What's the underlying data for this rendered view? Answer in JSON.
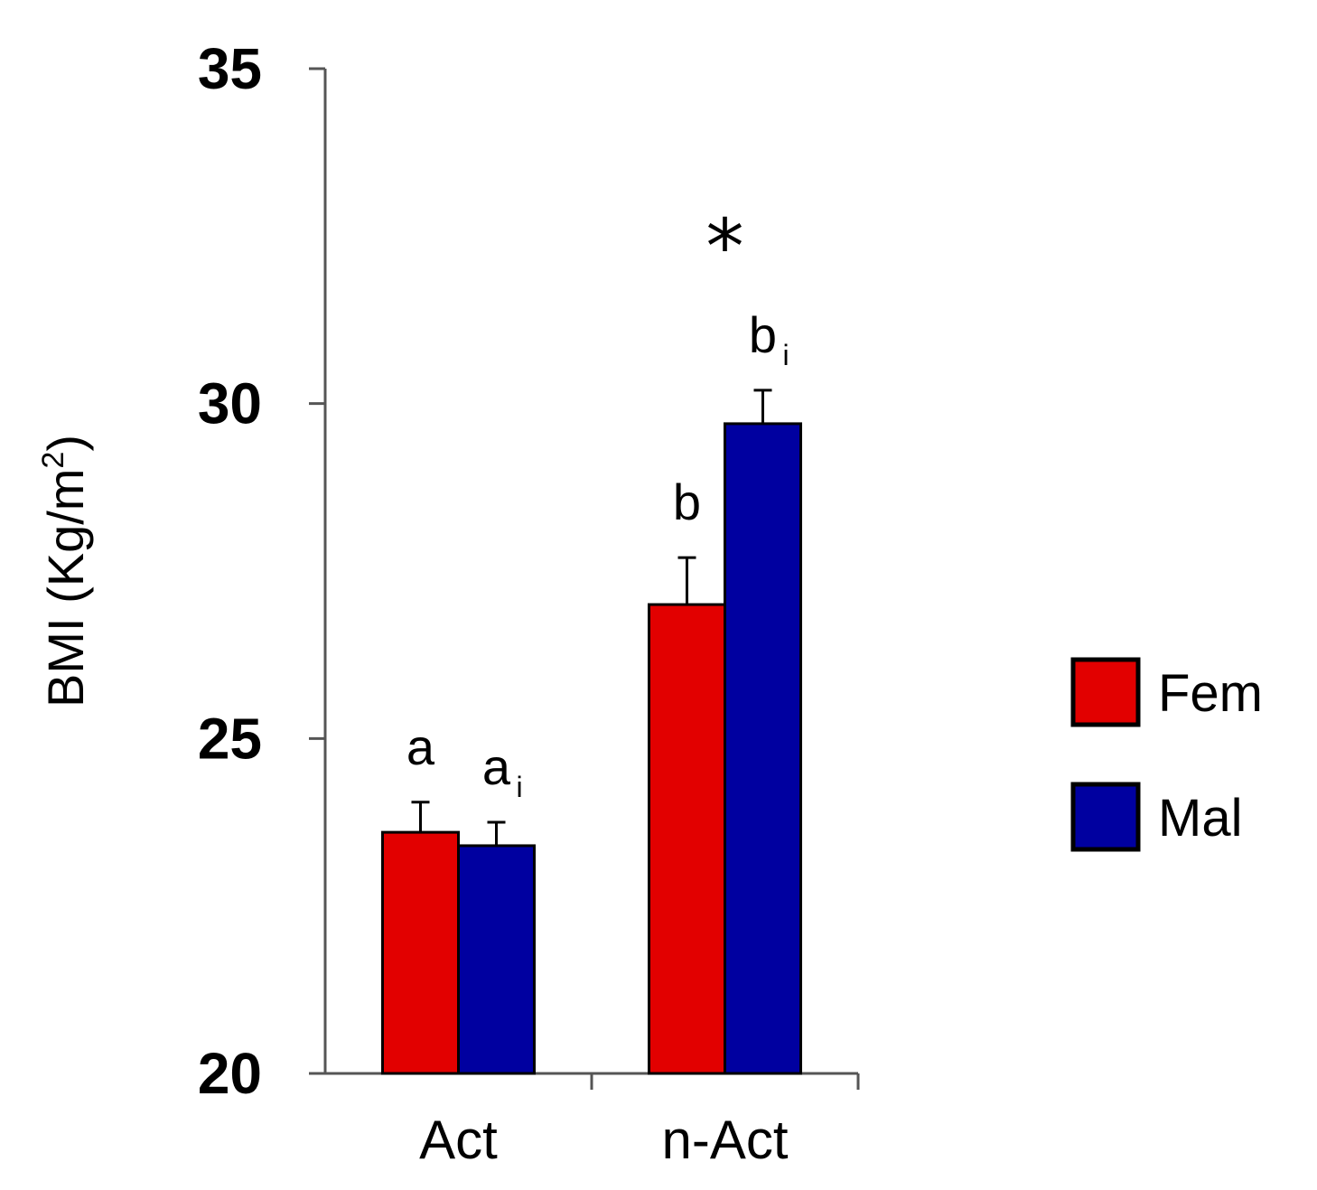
{
  "chart_data": {
    "type": "bar",
    "categories": [
      "Act",
      "n-Act"
    ],
    "series": [
      {
        "name": "Fem",
        "color": "#e20000",
        "values": [
          23.6,
          27.0
        ],
        "errors": [
          0.45,
          0.7
        ]
      },
      {
        "name": "Mal",
        "color": "#0000a0",
        "values": [
          23.4,
          29.7
        ],
        "errors": [
          0.35,
          0.5
        ]
      }
    ],
    "ylabel": "BMI (Kg/m",
    "ylabel_sup": "2",
    "ylabel_close": ")",
    "ylim": [
      20,
      35
    ],
    "yticks": [
      20,
      25,
      30,
      35
    ],
    "legend_position": "right",
    "annotations": [
      {
        "category": "Act",
        "series": "Fem",
        "text": "a",
        "sub": ""
      },
      {
        "category": "Act",
        "series": "Mal",
        "text": "a",
        "sub": "i"
      },
      {
        "category": "n-Act",
        "series": "Fem",
        "text": "b",
        "sub": ""
      },
      {
        "category": "n-Act",
        "series": "Mal",
        "text": "b",
        "sub": "i"
      }
    ],
    "significance": {
      "category": "n-Act",
      "text": "*"
    }
  }
}
